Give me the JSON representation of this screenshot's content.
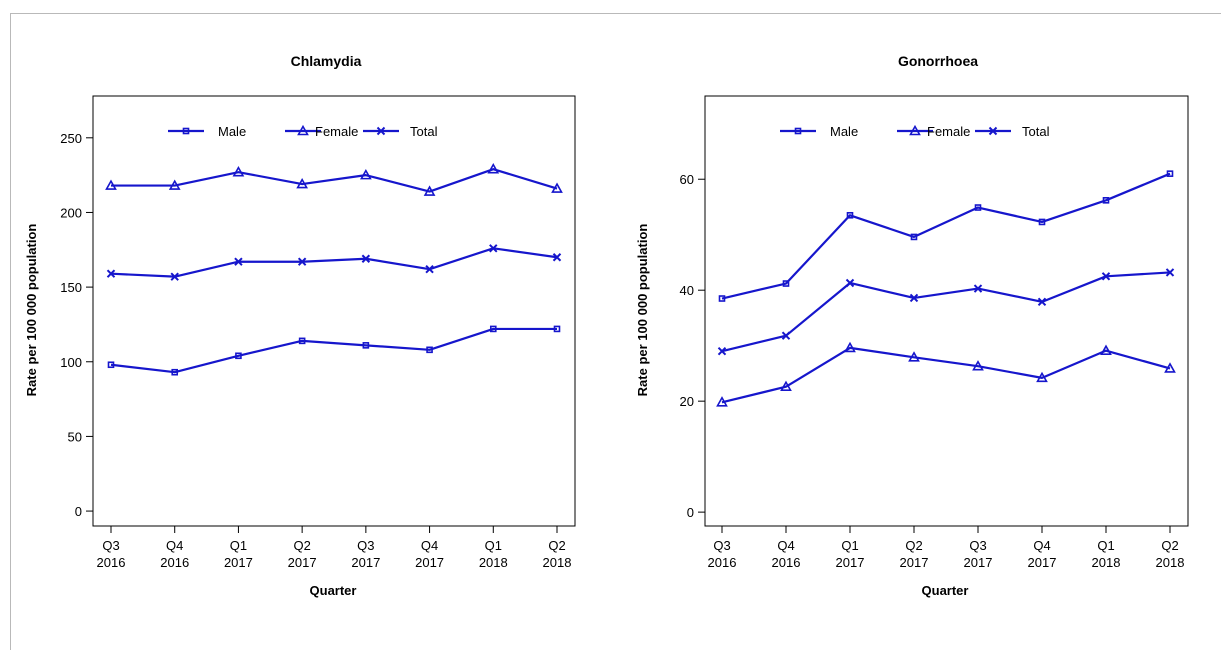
{
  "colors": {
    "series": "#1616cc",
    "axis": "#000000",
    "frame": "#b9b9b9"
  },
  "chart_data": [
    {
      "type": "line",
      "title": "Chlamydia",
      "xlabel": "Quarter",
      "ylabel": "Rate per 100 000 population",
      "categories": [
        "Q3\n2016",
        "Q4\n2016",
        "Q1\n2017",
        "Q2\n2017",
        "Q3\n2017",
        "Q4\n2017",
        "Q1\n2018",
        "Q2\n2018"
      ],
      "ylim": [
        -10,
        278
      ],
      "yticks": [
        0,
        50,
        100,
        150,
        200,
        250
      ],
      "legend": "top-center",
      "series": [
        {
          "name": "Male",
          "marker": "square",
          "values": [
            98,
            93,
            104,
            114,
            111,
            108,
            122,
            122
          ]
        },
        {
          "name": "Female",
          "marker": "triangle",
          "values": [
            218,
            218,
            227,
            219,
            225,
            214,
            229,
            216
          ]
        },
        {
          "name": "Total",
          "marker": "cross",
          "values": [
            159,
            157,
            167,
            167,
            169,
            162,
            176,
            170
          ]
        }
      ]
    },
    {
      "type": "line",
      "title": "Gonorrhoea",
      "xlabel": "Quarter",
      "ylabel": "Rate per 100 000 population",
      "categories": [
        "Q3\n2016",
        "Q4\n2016",
        "Q1\n2017",
        "Q2\n2017",
        "Q3\n2017",
        "Q4\n2017",
        "Q1\n2018",
        "Q2\n2018"
      ],
      "ylim": [
        -2.5,
        75
      ],
      "yticks": [
        0,
        20,
        40,
        60
      ],
      "legend": "top-center",
      "series": [
        {
          "name": "Male",
          "marker": "square",
          "values": [
            38.5,
            41.2,
            53.5,
            49.6,
            54.9,
            52.3,
            56.2,
            61.0
          ]
        },
        {
          "name": "Female",
          "marker": "triangle",
          "values": [
            19.8,
            22.6,
            29.6,
            27.9,
            26.3,
            24.2,
            29.1,
            25.9
          ]
        },
        {
          "name": "Total",
          "marker": "cross",
          "values": [
            29.0,
            31.8,
            41.3,
            38.6,
            40.3,
            37.9,
            42.5,
            43.2
          ]
        }
      ]
    }
  ]
}
